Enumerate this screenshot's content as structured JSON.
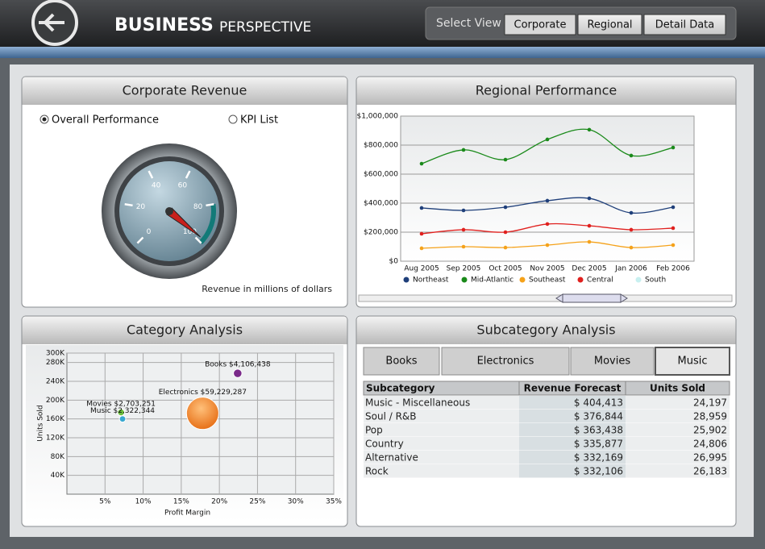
{
  "header": {
    "title": "BUSINESS",
    "subtitle": "PERSPECTIVE",
    "select_view": "Select View",
    "buttons": [
      "Corporate",
      "Regional",
      "Detail Data"
    ],
    "active": 0
  },
  "corporate_revenue": {
    "title": "Corporate Revenue",
    "options": [
      "Overall Performance",
      "KPI List"
    ],
    "selected": 0,
    "chart_data": {
      "type": "gauge",
      "value": 98,
      "range": [
        0,
        100
      ],
      "ticks": [
        0,
        20,
        40,
        60,
        80,
        100
      ],
      "band": [
        80,
        100
      ],
      "band_color": "#127a78",
      "caption": "Revenue in millions of dollars"
    }
  },
  "regional_performance": {
    "title": "Regional Performance",
    "chart_data": {
      "type": "line",
      "categories": [
        "Aug 2005",
        "Sep 2005",
        "Oct 2005",
        "Nov 2005",
        "Dec 2005",
        "Jan 2006",
        "Feb 2006"
      ],
      "series": [
        {
          "name": "Northeast",
          "color": "#1f3f7a",
          "values": [
            367000,
            350000,
            372000,
            417000,
            433000,
            333000,
            372000
          ]
        },
        {
          "name": "Mid-Atlantic",
          "color": "#1a8a1a",
          "values": [
            672000,
            767000,
            700000,
            839000,
            906000,
            728000,
            783000
          ]
        },
        {
          "name": "Southeast",
          "color": "#f5a21a",
          "values": [
            89000,
            100000,
            94000,
            111000,
            133000,
            94000,
            111000
          ]
        },
        {
          "name": "Central",
          "color": "#e0201e",
          "values": [
            189000,
            217000,
            200000,
            256000,
            244000,
            217000,
            228000
          ]
        },
        {
          "name": "South",
          "color": "#c8f0f0",
          "values": [
            null,
            null,
            null,
            null,
            null,
            null,
            null
          ]
        }
      ],
      "ylim": [
        0,
        1000000
      ],
      "yticks": [
        {
          "value": 0,
          "label": "$0"
        },
        {
          "value": 200000,
          "label": "$200,000"
        },
        {
          "value": 400000,
          "label": "$400,000"
        },
        {
          "value": 600000,
          "label": "$600,000"
        },
        {
          "value": 800000,
          "label": "$800,000"
        },
        {
          "value": 1000000,
          "label": "$1,000,000"
        }
      ],
      "grid": true,
      "legend": "bottom"
    }
  },
  "category_analysis": {
    "title": "Category Analysis",
    "chart_data": {
      "type": "bubble",
      "x_label": "Profit Margin",
      "y_label": "Units Sold",
      "points": [
        {
          "label": "Books $4,106,438",
          "color": "#7a2a8a",
          "x": 22.4,
          "y": 257000,
          "size": 4106438
        },
        {
          "label": "Electronics $59,229,287",
          "color": "#f07818",
          "x": 17.8,
          "y": 172000,
          "size": 59229287
        },
        {
          "label": "Movies $2,703,251",
          "color": "#6cbf3c",
          "x": 7.1,
          "y": 174000,
          "size": 2703251
        },
        {
          "label": "Music $2,322,344",
          "color": "#38a8d0",
          "x": 7.3,
          "y": 160000,
          "size": 2322344
        }
      ],
      "xlim": [
        0,
        35
      ],
      "xticks": [
        {
          "value": 5,
          "label": "5%"
        },
        {
          "value": 10,
          "label": "10%"
        },
        {
          "value": 15,
          "label": "15%"
        },
        {
          "value": 20,
          "label": "20%"
        },
        {
          "value": 25,
          "label": "25%"
        },
        {
          "value": 30,
          "label": "30%"
        },
        {
          "value": 35,
          "label": "35%"
        }
      ],
      "ylim": [
        0,
        300000
      ],
      "yticks": [
        {
          "value": 40000,
          "label": "40K"
        },
        {
          "value": 80000,
          "label": "80K"
        },
        {
          "value": 120000,
          "label": "120K"
        },
        {
          "value": 160000,
          "label": "160K"
        },
        {
          "value": 200000,
          "label": "200K"
        },
        {
          "value": 240000,
          "label": "240K"
        },
        {
          "value": 280000,
          "label": "280K"
        },
        {
          "value": 300000,
          "label": "300K"
        }
      ],
      "grid": true
    }
  },
  "subcategory_analysis": {
    "title": "Subcategory Analysis",
    "tabs": [
      "Books",
      "Electronics",
      "Movies",
      "Music"
    ],
    "active_tab": 3,
    "table": {
      "columns": [
        "Subcategory",
        "Revenue Forecast",
        "Units Sold"
      ],
      "rows": [
        [
          "Music - Miscellaneous",
          "$ 404,413",
          "24,197"
        ],
        [
          "Soul / R&B",
          "$ 376,844",
          "28,959"
        ],
        [
          "Pop",
          "$ 363,438",
          "25,902"
        ],
        [
          "Country",
          "$ 335,877",
          "24,806"
        ],
        [
          "Alternative",
          "$ 332,169",
          "26,995"
        ],
        [
          "Rock",
          "$ 332,106",
          "26,183"
        ]
      ]
    }
  }
}
